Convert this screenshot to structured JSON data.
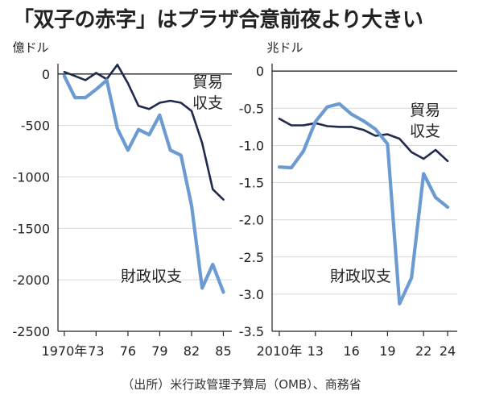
{
  "title": "「双子の赤字」はプラザ合意前夜より大きい",
  "source": "（出所）米行政管理予算局（OMB）、商務省",
  "colors": {
    "trade": "#1f2a4d",
    "fiscal": "#6b9bd2",
    "axis": "#222222",
    "grid": "#d9d9d9",
    "text": "#222222"
  },
  "chart_data": [
    {
      "type": "line",
      "unit_label": "億ドル",
      "ylim": [
        -2500,
        100
      ],
      "yticks": [
        0,
        -500,
        -1000,
        -1500,
        -2000,
        -2500
      ],
      "ytick_labels": [
        "0",
        "-500",
        "-1000",
        "-1500",
        "-2000",
        "-2500"
      ],
      "xlim": [
        1969.4,
        1985.8
      ],
      "xticks": [
        1970,
        1973,
        1976,
        1979,
        1982,
        1985
      ],
      "xtick_labels": [
        "1970年",
        "73",
        "76",
        "79",
        "82",
        "85"
      ],
      "x": [
        1970,
        1971,
        1972,
        1973,
        1974,
        1975,
        1976,
        1977,
        1978,
        1979,
        1980,
        1981,
        1982,
        1983,
        1984,
        1985
      ],
      "series": [
        {
          "name": "貿易収支",
          "label_lines": [
            "貿易",
            "収支"
          ],
          "values": [
            20,
            -20,
            -60,
            10,
            -50,
            90,
            -90,
            -310,
            -340,
            -280,
            -260,
            -280,
            -360,
            -670,
            -1120,
            -1220
          ]
        },
        {
          "name": "財政収支",
          "label_lines": [
            "財政収支"
          ],
          "values": [
            -20,
            -230,
            -230,
            -150,
            -60,
            -530,
            -740,
            -540,
            -590,
            -400,
            -740,
            -790,
            -1280,
            -2080,
            -1850,
            -2120
          ]
        }
      ]
    },
    {
      "type": "line",
      "unit_label": "兆ドル",
      "ylim": [
        -3.5,
        0.1
      ],
      "yticks": [
        0,
        -0.5,
        -1.0,
        -1.5,
        -2.0,
        -2.5,
        -3.0,
        -3.5
      ],
      "ytick_labels": [
        "0",
        "-0.5",
        "-1.0",
        "-1.5",
        "-2.0",
        "-2.5",
        "-3.0",
        "-3.5"
      ],
      "xlim": [
        2009.4,
        2024.8
      ],
      "xticks": [
        2010,
        2013,
        2016,
        2019,
        2022,
        2024
      ],
      "xtick_labels": [
        "2010年",
        "13",
        "16",
        "19",
        "22",
        "24"
      ],
      "x": [
        2010,
        2011,
        2012,
        2013,
        2014,
        2015,
        2016,
        2017,
        2018,
        2019,
        2020,
        2021,
        2022,
        2023,
        2024
      ],
      "series": [
        {
          "name": "貿易収支",
          "label_lines": [
            "貿易",
            "収支"
          ],
          "values": [
            -0.64,
            -0.73,
            -0.73,
            -0.7,
            -0.74,
            -0.75,
            -0.75,
            -0.79,
            -0.87,
            -0.85,
            -0.91,
            -1.09,
            -1.18,
            -1.06,
            -1.21
          ]
        },
        {
          "name": "財政収支",
          "label_lines": [
            "財政収支"
          ],
          "values": [
            -1.29,
            -1.3,
            -1.08,
            -0.68,
            -0.48,
            -0.44,
            -0.58,
            -0.67,
            -0.78,
            -0.98,
            -3.13,
            -2.78,
            -1.38,
            -1.7,
            -1.83
          ]
        }
      ]
    }
  ]
}
